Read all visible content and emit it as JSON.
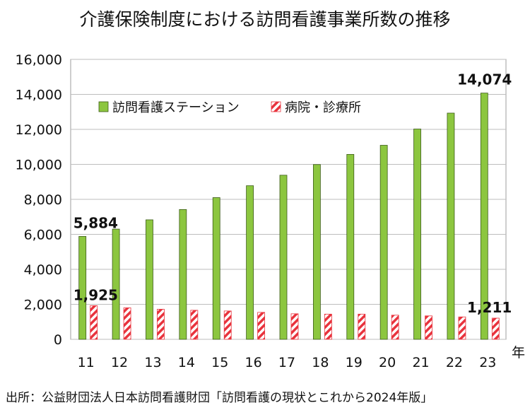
{
  "title": "介護保険制度における訪問看護事業所数の推移",
  "source": "出所：公益財団法人日本訪問看護財団「訪問看護の現状とこれから2024年版」",
  "x_unit": "年",
  "colors": {
    "green": "#8cc63f",
    "green_stroke": "#3d5b1a",
    "red": "#e8333d"
  },
  "chart_data": {
    "type": "bar",
    "categories": [
      "11",
      "12",
      "13",
      "14",
      "15",
      "16",
      "17",
      "18",
      "19",
      "20",
      "21",
      "22",
      "23"
    ],
    "series": [
      {
        "name": "訪問看護ステーション",
        "values": [
          5884,
          6300,
          6830,
          7420,
          8100,
          8780,
          9380,
          9990,
          10570,
          11090,
          12020,
          12930,
          14074
        ],
        "color": "#8cc63f"
      },
      {
        "name": "病院・診療所",
        "values": [
          1925,
          1800,
          1720,
          1660,
          1620,
          1540,
          1460,
          1440,
          1440,
          1380,
          1340,
          1280,
          1211
        ],
        "color": "#e8333d",
        "pattern": "diagonal-stripes"
      }
    ],
    "ylim": [
      0,
      16000
    ],
    "yticks": [
      0,
      2000,
      4000,
      6000,
      8000,
      10000,
      12000,
      14000,
      16000
    ],
    "ytick_labels": [
      "0",
      "2,000",
      "4,000",
      "6,000",
      "8,000",
      "10,000",
      "12,000",
      "14,000",
      "16,000"
    ],
    "grid": true,
    "legend_position": "top-left",
    "annotations": [
      {
        "series": 0,
        "index": 0,
        "text": "5,884"
      },
      {
        "series": 1,
        "index": 0,
        "text": "1,925"
      },
      {
        "series": 0,
        "index": 12,
        "text": "14,074"
      },
      {
        "series": 1,
        "index": 12,
        "text": "1,211"
      }
    ]
  }
}
